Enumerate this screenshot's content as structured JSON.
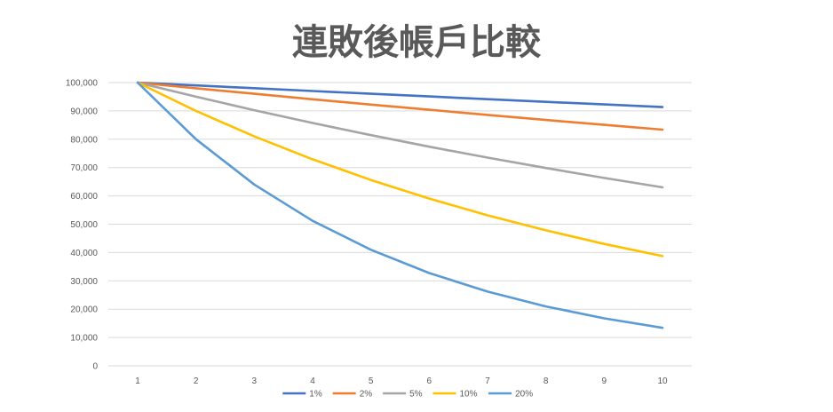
{
  "chart_data": {
    "type": "line",
    "title": "連敗後帳戶比較",
    "xlabel": "",
    "ylabel": "",
    "x": [
      1,
      2,
      3,
      4,
      5,
      6,
      7,
      8,
      9,
      10
    ],
    "x_tick_labels": [
      "1",
      "2",
      "3",
      "4",
      "5",
      "6",
      "7",
      "8",
      "9",
      "10"
    ],
    "ylim": [
      0,
      100000
    ],
    "y_tick_labels": [
      "0",
      "10,000",
      "20,000",
      "30,000",
      "40,000",
      "50,000",
      "60,000",
      "70,000",
      "80,000",
      "90,000",
      "100,000"
    ],
    "y_tick_values": [
      0,
      10000,
      20000,
      30000,
      40000,
      50000,
      60000,
      70000,
      80000,
      90000,
      100000
    ],
    "grid": true,
    "legend_position": "bottom",
    "series": [
      {
        "name": "1%",
        "color": "#4472c4",
        "values": [
          100000,
          99000,
          98010,
          97030,
          96060,
          95099,
          94148,
          93207,
          92274,
          91352
        ]
      },
      {
        "name": "2%",
        "color": "#ed7d31",
        "values": [
          100000,
          98000,
          96040,
          94119,
          92237,
          90392,
          88584,
          86813,
          85076,
          83375
        ]
      },
      {
        "name": "5%",
        "color": "#a5a5a5",
        "values": [
          100000,
          95000,
          90250,
          85738,
          81451,
          77378,
          73509,
          69834,
          66342,
          63025
        ]
      },
      {
        "name": "10%",
        "color": "#ffc000",
        "values": [
          100000,
          90000,
          81000,
          72900,
          65610,
          59049,
          53144,
          47830,
          43047,
          38742
        ]
      },
      {
        "name": "20%",
        "color": "#5b9bd5",
        "values": [
          100000,
          80000,
          64000,
          51200,
          40960,
          32768,
          26214,
          20972,
          16777,
          13422
        ]
      }
    ]
  }
}
